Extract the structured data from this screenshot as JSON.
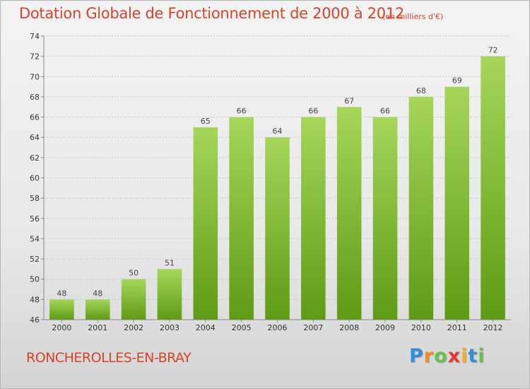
{
  "header": {
    "title": "Dotation Globale de Fonctionnement de 2000 à 2012",
    "unit": "(en milliers d'€)"
  },
  "footer": {
    "commune": "RONCHEROLLES-EN-BRAY",
    "logo_letters": [
      "P",
      "r",
      "o",
      "x",
      "i",
      "t",
      "i"
    ],
    "logo_colors": [
      "#2f8fd8",
      "#f28a1e",
      "#6cc04a",
      "#e8382c",
      "#f2b01e",
      "#2f8fd8",
      "#6cc04a"
    ]
  },
  "colors": {
    "bar_top": "#a6d65a",
    "bar_bottom": "#5e9b14",
    "grid": "#c7c7c7",
    "axis": "#888888"
  },
  "chart_data": {
    "type": "bar",
    "categories": [
      "2000",
      "2001",
      "2002",
      "2003",
      "2004",
      "2005",
      "2006",
      "2007",
      "2008",
      "2009",
      "2010",
      "2011",
      "2012"
    ],
    "values": [
      48,
      48,
      50,
      51,
      65,
      66,
      64,
      66,
      67,
      66,
      68,
      69,
      72
    ],
    "ylim": [
      46,
      74
    ],
    "yticks": [
      46,
      48,
      50,
      52,
      54,
      56,
      58,
      60,
      62,
      64,
      66,
      68,
      70,
      72,
      74
    ],
    "grid": true,
    "legend": "none"
  }
}
